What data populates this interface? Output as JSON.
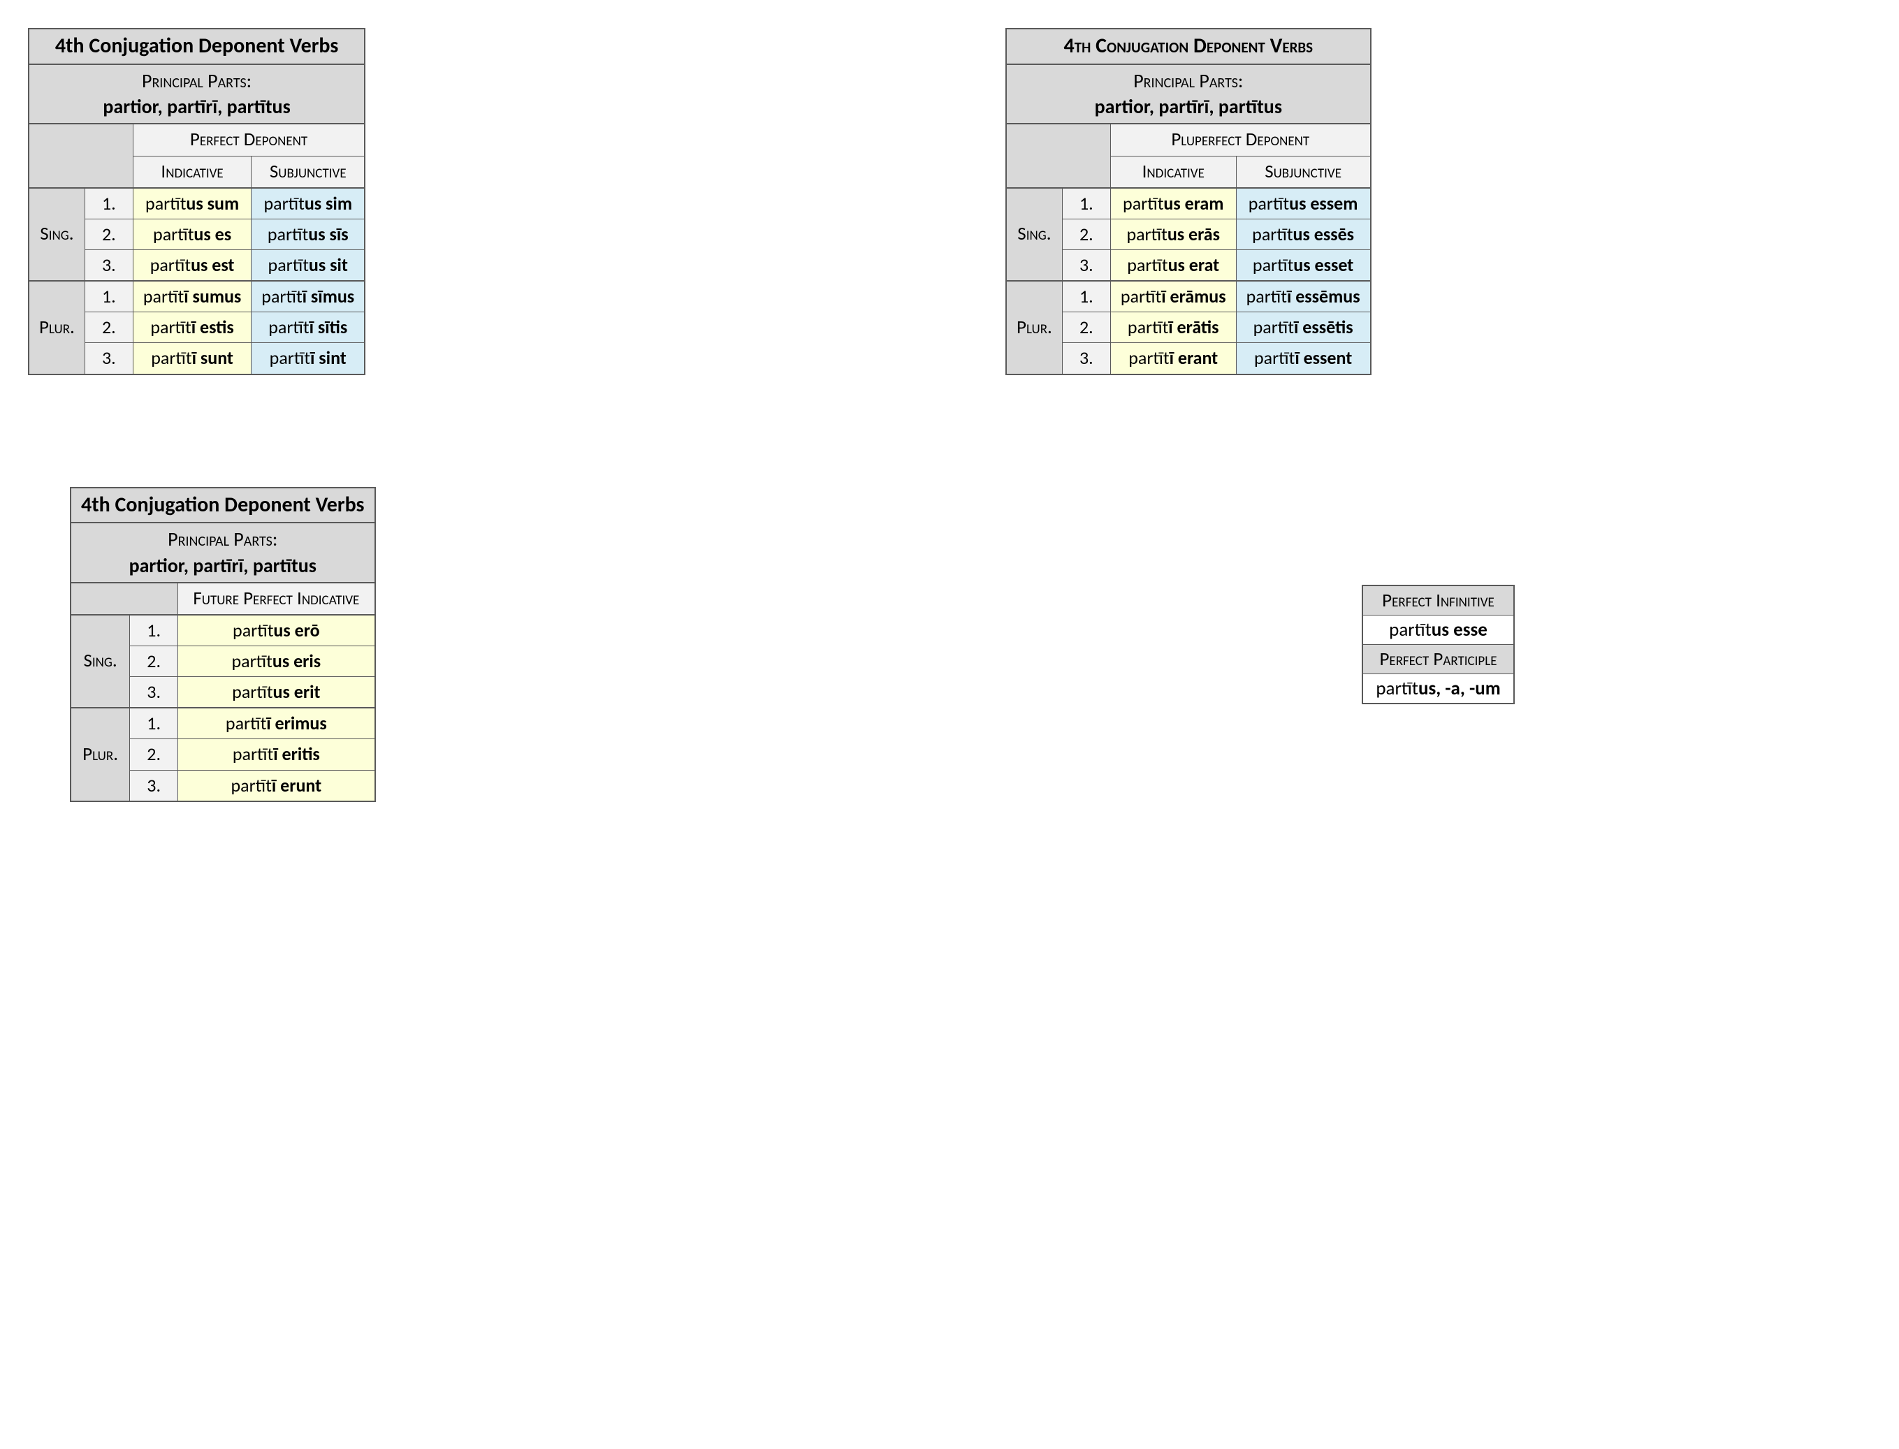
{
  "colors": {
    "border": "#595959",
    "header_grey": "#d9d9d9",
    "light_grey": "#f2f2f2",
    "indicative_bg": "#fdffd9",
    "subjunctive_bg": "#d7edf6",
    "background": "#ffffff"
  },
  "typography": {
    "base_fontsize": 26,
    "title_fontsize": 30,
    "font_family": "Calibri"
  },
  "shared": {
    "title": "4th Conjugation Deponent Verbs",
    "principal_parts_label": "Principal Parts:",
    "principal_parts": "partior, partīrī, partītus",
    "indicative": "Indicative",
    "subjunctive": "Subjunctive",
    "sing": "Sing.",
    "plur": "Plur.",
    "p1": "1.",
    "p2": "2.",
    "p3": "3."
  },
  "table1": {
    "title_smallcaps": false,
    "tense": "Perfect Deponent",
    "has_subjunctive": true,
    "rows": [
      {
        "ind_stem": "partīt",
        "ind_end": "us sum",
        "subj_stem": "partīt",
        "subj_end": "us sim"
      },
      {
        "ind_stem": "partīt",
        "ind_end": "us es",
        "subj_stem": "partīt",
        "subj_end": "us sīs"
      },
      {
        "ind_stem": "partīt",
        "ind_end": "us est",
        "subj_stem": "partīt",
        "subj_end": "us sit"
      },
      {
        "ind_stem": "partīt",
        "ind_end": "ī sumus",
        "subj_stem": "partīt",
        "subj_end": "ī sīmus"
      },
      {
        "ind_stem": "partīt",
        "ind_end": "ī estis",
        "subj_stem": "partīt",
        "subj_end": "ī sītis"
      },
      {
        "ind_stem": "partīt",
        "ind_end": "ī sunt",
        "subj_stem": "partīt",
        "subj_end": "ī sint"
      }
    ]
  },
  "table2": {
    "title_smallcaps": true,
    "tense": "Pluperfect Deponent",
    "has_subjunctive": true,
    "rows": [
      {
        "ind_stem": "partīt",
        "ind_end": "us eram",
        "subj_stem": "partīt",
        "subj_end": "us essem"
      },
      {
        "ind_stem": "partīt",
        "ind_end": "us erās",
        "subj_stem": "partīt",
        "subj_end": "us essēs"
      },
      {
        "ind_stem": "partīt",
        "ind_end": "us erat",
        "subj_stem": "partīt",
        "subj_end": "us esset"
      },
      {
        "ind_stem": "partīt",
        "ind_end": "ī erāmus",
        "subj_stem": "partīt",
        "subj_end": "ī essēmus"
      },
      {
        "ind_stem": "partīt",
        "ind_end": "ī erātis",
        "subj_stem": "partīt",
        "subj_end": "ī essētis"
      },
      {
        "ind_stem": "partīt",
        "ind_end": "ī erant",
        "subj_stem": "partīt",
        "subj_end": "ī essent"
      }
    ]
  },
  "table3": {
    "title_smallcaps": false,
    "tense": "Future Perfect Indicative",
    "has_subjunctive": false,
    "rows": [
      {
        "ind_stem": "partīt",
        "ind_end": "us erō"
      },
      {
        "ind_stem": "partīt",
        "ind_end": "us eris"
      },
      {
        "ind_stem": "partīt",
        "ind_end": "us erit"
      },
      {
        "ind_stem": "partīt",
        "ind_end": "ī erimus"
      },
      {
        "ind_stem": "partīt",
        "ind_end": "ī eritis"
      },
      {
        "ind_stem": "partīt",
        "ind_end": "ī erunt"
      }
    ]
  },
  "mini": {
    "inf_label": "Perfect Infinitive",
    "inf_stem": "partīt",
    "inf_end": "us esse",
    "part_label": "Perfect Participle",
    "part_stem": "partīt",
    "part_end": "us",
    "part_suffix": ", -a, -um"
  }
}
